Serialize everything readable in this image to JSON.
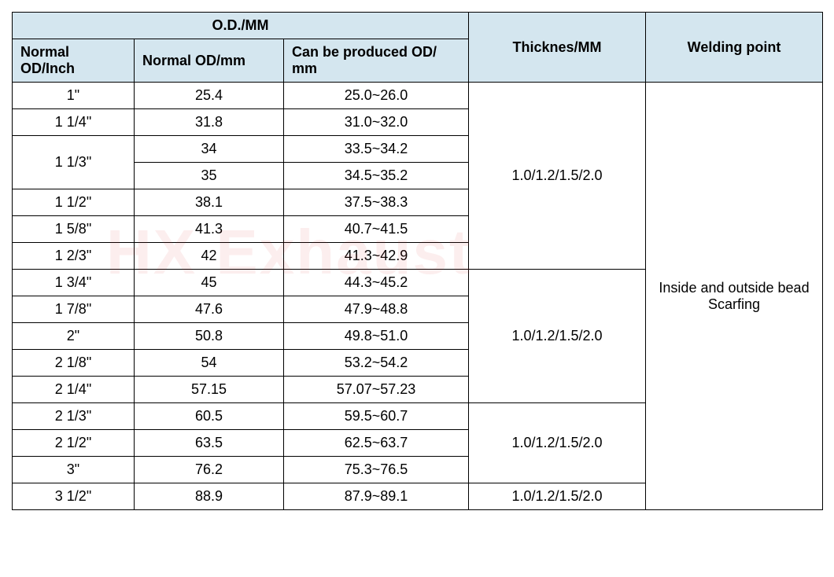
{
  "headers": {
    "od_group": "O.D./MM",
    "od_inch": "Normal OD/Inch",
    "od_mm": "Normal OD/mm",
    "od_produced": "Can be produced OD/ mm",
    "thickness": "Thicknes/MM",
    "welding": "Welding point"
  },
  "rows": [
    {
      "inch": "1\"",
      "mm": "25.4",
      "prod": "25.0~26.0"
    },
    {
      "inch": "1 1/4\"",
      "mm": "31.8",
      "prod": "31.0~32.0"
    },
    {
      "inch": "1 1/3\"",
      "mm": "34",
      "prod": "33.5~34.2",
      "inch_rowspan": 2
    },
    {
      "mm": "35",
      "prod": "34.5~35.2"
    },
    {
      "inch": "1 1/2\"",
      "mm": "38.1",
      "prod": "37.5~38.3"
    },
    {
      "inch": "1 5/8\"",
      "mm": "41.3",
      "prod": "40.7~41.5"
    },
    {
      "inch": "1 2/3\"",
      "mm": "42",
      "prod": "41.3~42.9"
    },
    {
      "inch": "1 3/4\"",
      "mm": "45",
      "prod": "44.3~45.2"
    },
    {
      "inch": "1 7/8\"",
      "mm": "47.6",
      "prod": "47.9~48.8"
    },
    {
      "inch": "2\"",
      "mm": "50.8",
      "prod": "49.8~51.0"
    },
    {
      "inch": "2 1/8\"",
      "mm": "54",
      "prod": "53.2~54.2"
    },
    {
      "inch": "2 1/4\"",
      "mm": "57.15",
      "prod": "57.07~57.23"
    },
    {
      "inch": "2 1/3\"",
      "mm": "60.5",
      "prod": "59.5~60.7"
    },
    {
      "inch": "2 1/2\"",
      "mm": "63.5",
      "prod": "62.5~63.7"
    },
    {
      "inch": "3\"",
      "mm": "76.2",
      "prod": "75.3~76.5"
    },
    {
      "inch": "3 1/2\"",
      "mm": "88.9",
      "prod": "87.9~89.1"
    }
  ],
  "thickness_spans": [
    {
      "text": "1.0/1.2/1.5/2.0",
      "rowspan": 7
    },
    {
      "text": "1.0/1.2/1.5/2.0",
      "rowspan": 5
    },
    {
      "text": "1.0/1.2/1.5/2.0",
      "rowspan": 3
    },
    {
      "text": "1.0/1.2/1.5/2.0",
      "rowspan": 1
    }
  ],
  "welding_text": "Inside and outside bead Scarfing",
  "welding_rowspan": 16,
  "watermark": "HX Exhaust",
  "colors": {
    "header_bg": "#d4e6ef",
    "border": "#000000",
    "background": "#ffffff",
    "watermark": "rgba(220,40,40,0.08)"
  }
}
